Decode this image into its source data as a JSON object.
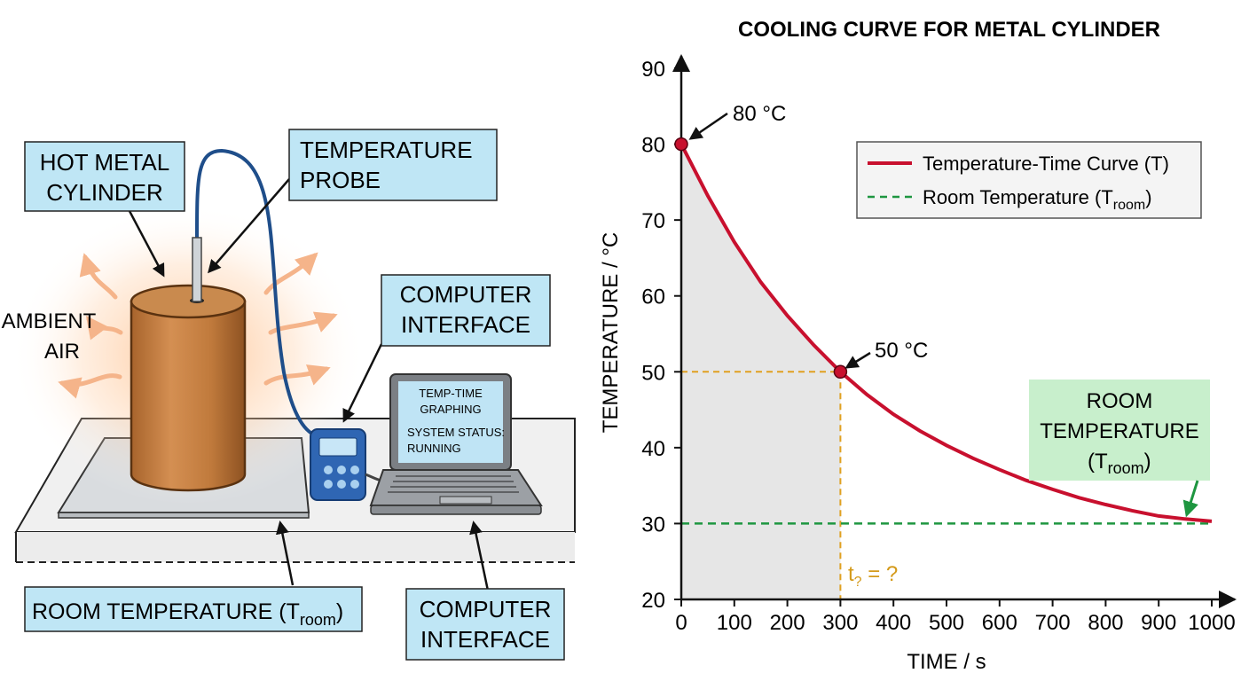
{
  "diagram": {
    "labels": {
      "hot_metal_cylinder": [
        "HOT METAL",
        "CYLINDER"
      ],
      "temperature_probe": [
        "TEMPERATURE",
        "PROBE"
      ],
      "computer_interface_top": [
        "COMPUTER",
        "INTERFACE"
      ],
      "ambient_air": [
        "AMBIENT",
        "AIR"
      ],
      "room_temperature": {
        "main": "ROOM TEMPERATURE (T",
        "sub": "room",
        "close": ")"
      },
      "computer_interface_bottom": [
        "COMPUTER",
        "INTERFACE"
      ]
    },
    "laptop_screen": {
      "line1": "TEMP-TIME",
      "line2": "GRAPHING",
      "line3": "SYSTEM STATUS:",
      "line4": "RUNNING"
    }
  },
  "chart": {
    "title": "COOLING CURVE FOR METAL CYLINDER",
    "xlabel": "TIME / s",
    "ylabel": "TEMPERATURE / °C",
    "legend": {
      "curve": "Temperature-Time Curve (T)",
      "room_main": "Room Temperature (T",
      "room_sub": "room",
      "room_close": ")"
    },
    "annotations": {
      "start": "80 °C",
      "mid": "50 °C",
      "t_main": "t",
      "t_sub": "?",
      "t_rest": " = ?",
      "room_box": {
        "line1": "ROOM",
        "line2": "TEMPERATURE",
        "line3_main": "(T",
        "line3_sub": "room",
        "line3_close": ")"
      }
    },
    "colors": {
      "curve": "#c8102e",
      "room_line": "#1e9640",
      "guide": "#e0a020",
      "shade": "#e6e6e6",
      "room_box_fill": "#c8efcc",
      "label_box_fill": "#bfe6f5"
    }
  },
  "chart_data": {
    "type": "line",
    "title": "COOLING CURVE FOR METAL CYLINDER",
    "xlabel": "TIME / s",
    "ylabel": "TEMPERATURE / °C",
    "xlim": [
      0,
      1000
    ],
    "ylim": [
      20,
      90
    ],
    "x_ticks": [
      0,
      100,
      200,
      300,
      400,
      500,
      600,
      700,
      800,
      900,
      1000
    ],
    "y_ticks": [
      20,
      30,
      40,
      50,
      60,
      70,
      80,
      90
    ],
    "legend_position": "top-right",
    "grid": false,
    "series": [
      {
        "name": "Temperature-Time Curve (T)",
        "x": [
          0,
          50,
          100,
          150,
          200,
          250,
          300,
          350,
          400,
          450,
          500,
          550,
          600,
          650,
          700,
          750,
          800,
          850,
          900,
          950,
          1000
        ],
        "y": [
          80.0,
          73.2,
          67.1,
          61.8,
          57.4,
          53.5,
          50.0,
          47.0,
          44.4,
          42.2,
          40.3,
          38.6,
          37.1,
          35.7,
          34.5,
          33.4,
          32.5,
          31.7,
          31.0,
          30.6,
          30.3
        ]
      },
      {
        "name": "Room Temperature (Troom)",
        "x": [
          0,
          1000
        ],
        "y": [
          30,
          30
        ]
      }
    ],
    "points": [
      {
        "x": 0,
        "y": 80,
        "label": "80 °C"
      },
      {
        "x": 300,
        "y": 50,
        "label": "50 °C"
      }
    ]
  }
}
